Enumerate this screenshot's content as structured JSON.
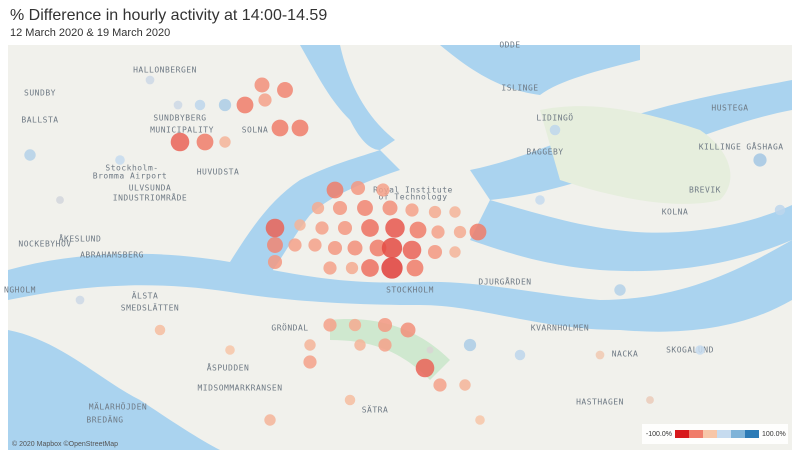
{
  "header": {
    "title": "% Difference in hourly activity at 14:00-14.59",
    "subtitle": "12 March 2020 & 19 March 2020"
  },
  "map": {
    "places": [
      "HALLONBERGEN",
      "SUNDBYBERG",
      "MUNICIPALITY",
      "SOLNA",
      "Stockholm-",
      "Bromma Airport",
      "ULVSUNDA",
      "INDUSTRIOMRÅDE",
      "HUVUDSTA",
      "ISLINGE",
      "LIDINGÖ",
      "HUSTEGA",
      "BAGGEBY",
      "KILLINGE",
      "GÅSHAGA",
      "BREVIK",
      "STOCKHOLM",
      "NOCKEBYHOV",
      "ÅKESLUND",
      "ABRAHAMSBERG",
      "ÄLSTA",
      "SMEDSLÄTTEN",
      "NACKA",
      "DJURGÅRDEN",
      "KVARNHOLMEN",
      "SKOGALUND",
      "HASTHAGEN",
      "ÅSPUDDEN",
      "MIDSOMMARKRANSEN",
      "MÄLARHÖJDEN",
      "BREDÄNG",
      "Royal Institute",
      "of Technology",
      "GRÖNDAL",
      "SUNDBY",
      "BALLSTA",
      "NGHOLM",
      "ODDE",
      "SÄTRA",
      "KOLNA"
    ],
    "attribution": "© 2020 Mapbox ©OpenStreetMap"
  },
  "legend": {
    "colors": [
      "#d7191c",
      "#f07c6a",
      "#f7c6a8",
      "#c6dbef",
      "#7fb3d8",
      "#2c7bb6"
    ],
    "min": {
      "value": -100,
      "label": "-100.0%"
    },
    "max": {
      "value": 100,
      "label": "100.0%"
    }
  },
  "bubbles": {
    "values": [
      -60,
      -45,
      -40,
      -35,
      -45,
      -55,
      -50,
      -40,
      -35,
      -30,
      -30,
      -40,
      -45,
      -65,
      -75,
      -60,
      -40,
      -35,
      -60,
      -55,
      -40,
      -40,
      -45,
      -50,
      -60,
      -80,
      -70,
      -45,
      -30,
      -40,
      -35,
      -65,
      -85,
      -60,
      -40,
      -35,
      -45,
      -50,
      -30,
      -30,
      -40,
      5,
      -40,
      -70,
      -40,
      -30,
      -70,
      -60,
      -30,
      -60,
      -40,
      -55,
      -50,
      -60,
      -60,
      -70,
      -45,
      25,
      35,
      15,
      25,
      35,
      25,
      -20,
      -25,
      -15,
      20,
      30,
      25,
      20,
      15,
      20,
      30,
      15,
      -20,
      -25,
      -30,
      40,
      10,
      -10
    ]
  }
}
